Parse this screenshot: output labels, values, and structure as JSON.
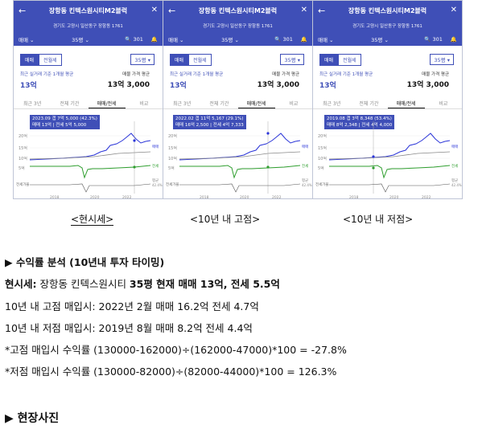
{
  "panels": [
    {
      "title": "장항동 킨텍스원시티M2블럭",
      "address": "경기도 고양시 일산동구 장항동 1761",
      "filter": "매매",
      "size": "35평",
      "count": "301",
      "toggle_on": "매매",
      "toggle_off": "전월세",
      "size_select": "35평",
      "recent_label": "최근 실거래 기준 1개월 평균",
      "recent_value": "13억",
      "ask_label": "매물 가격 평균",
      "ask_value": "13억 3,000",
      "tabs": [
        "최근 3년",
        "전체 기간",
        "매매/전세",
        "비교"
      ],
      "tip_line1": "2023.09 갭 7억 5,000 (42.3%)",
      "tip_line2": "매매 13억 | 전세 5억 5,000",
      "x_labels": [
        "2018",
        "2020",
        "2022"
      ],
      "y_labels": [
        "20억",
        "15억",
        "10억",
        "5억"
      ],
      "legend": [
        "매매",
        "전세",
        "평균"
      ],
      "gap_label": "전세가율",
      "pct": "42.4%"
    },
    {
      "title": "장항동 킨텍스원시티M2블럭",
      "address": "경기도 고양시 일산동구 장항동 1761",
      "filter": "매매",
      "size": "35평",
      "count": "301",
      "toggle_on": "매매",
      "toggle_off": "전월세",
      "size_select": "35평",
      "recent_label": "최근 실거래 기준 1개월 평균",
      "recent_value": "13억",
      "ask_label": "매물 가격 평균",
      "ask_value": "13억 3,000",
      "tabs": [
        "최근 3년",
        "전체 기간",
        "매매/전세",
        "비교"
      ],
      "tip_line1": "2022.02 갭 11억 5,167 (29.1%)",
      "tip_line2": "매매 16억 2,500 | 전세 4억 7,333",
      "x_labels": [
        "2018",
        "2020",
        "2022"
      ],
      "y_labels": [
        "20억",
        "15억",
        "10억",
        "5억"
      ],
      "legend": [
        "매매",
        "전세",
        "평균"
      ],
      "gap_label": "전세가율",
      "pct": "42.4%"
    },
    {
      "title": "장항동 킨텍스원시티M2블럭",
      "address": "경기도 고양시 일산동구 장항동 1761",
      "filter": "매매",
      "size": "35평",
      "count": "301",
      "toggle_on": "매매",
      "toggle_off": "전월세",
      "size_select": "35평",
      "recent_label": "최근 실거래 기준 1개월 평균",
      "recent_value": "13억",
      "ask_label": "매물 가격 평균",
      "ask_value": "13억 3,000",
      "tabs": [
        "최근 3년",
        "전체 기간",
        "매매/전세",
        "비교"
      ],
      "tip_line1": "2019.08 갭 3억 8,348 (53.4%)",
      "tip_line2": "매매 8억 2,348 | 전세 4억 4,000",
      "x_labels": [
        "2018",
        "2020",
        "2022"
      ],
      "y_labels": [
        "20억",
        "15억",
        "10억",
        "5억"
      ],
      "legend": [
        "매매",
        "전세",
        "평균"
      ],
      "gap_label": "전세가율",
      "pct": "42.4%"
    }
  ],
  "captions": [
    "<현시세>",
    "<10년 내 고점>",
    "<10년 내 저점>"
  ],
  "section1": "▶ 수익률 분석 (10년내 투자 타이밍)",
  "current": {
    "label": "현시세:",
    "text1": " 장항동 킨텍스원시티 ",
    "bold": "35평 현재 매매 13억, 전세 5.5억"
  },
  "high": "10년 내 고점 매입시: 2022년 2월 매매 16.2억 전세 4.7억",
  "low": "10년 내 저점 매입시: 2019년 8월 매매  8.2억 전세 4.4억",
  "high_yield": "*고점 매입시 수익률 (130000-162000)÷(162000-47000)*100 = -27.8%",
  "low_yield": "*저점 매입시 수익률 (130000-82000)÷(82000-44000)*100 = 126.3%",
  "section2": "▶ 현장사진",
  "colors": {
    "header": "#3f4fb7",
    "sale": "#2b35d8",
    "jeonse": "#2e9e2e",
    "avg": "#888888"
  }
}
